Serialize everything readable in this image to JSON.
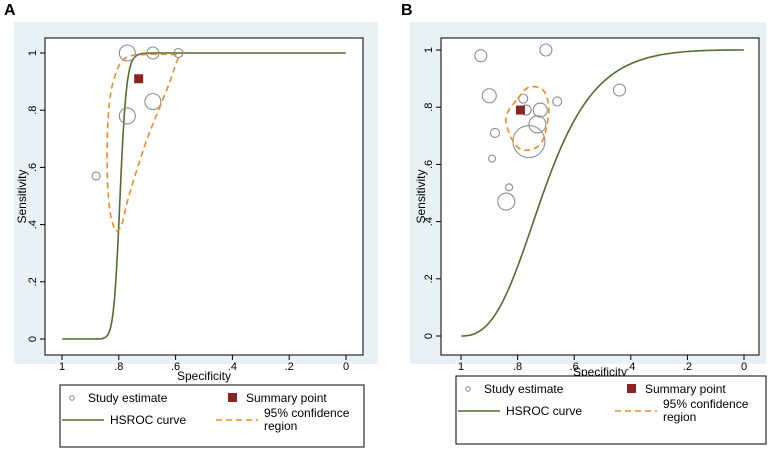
{
  "panels": [
    {
      "letter": "A"
    },
    {
      "letter": "B"
    }
  ],
  "legend": {
    "study_estimate": "Study estimate",
    "summary_point": "Summary point",
    "hsroc_curve": "HSROC curve",
    "confidence_region_line1": "95% confidence",
    "confidence_region_line2": "region"
  },
  "colors": {
    "panel_bg": "#e8f1f4",
    "plot_bg": "#ffffff",
    "hsroc": "#556b2f",
    "confidence": "#f08a24",
    "summary": "#8b2323",
    "study_edge": "#8c8c8c"
  },
  "chart_data": [
    {
      "type": "scatter",
      "panel": "A",
      "xlabel": "Specificity",
      "ylabel": "Sensitivity",
      "x_reversed": true,
      "xlim": [
        1,
        0
      ],
      "ylim": [
        0,
        1
      ],
      "x_ticks": [
        "1",
        ".8",
        ".6",
        ".4",
        ".2",
        "0"
      ],
      "y_ticks": [
        "0",
        ".2",
        ".4",
        ".6",
        ".8",
        "1"
      ],
      "grid": false,
      "legend_position": "bottom",
      "study_estimates": [
        {
          "specificity": 0.88,
          "sensitivity": 0.57,
          "size": 0.4
        },
        {
          "specificity": 0.77,
          "sensitivity": 1.0,
          "size": 0.8
        },
        {
          "specificity": 0.68,
          "sensitivity": 1.0,
          "size": 0.6
        },
        {
          "specificity": 0.59,
          "sensitivity": 1.0,
          "size": 0.45
        },
        {
          "specificity": 0.77,
          "sensitivity": 0.78,
          "size": 0.8
        },
        {
          "specificity": 0.68,
          "sensitivity": 0.83,
          "size": 0.8
        }
      ],
      "summary_point": {
        "specificity": 0.73,
        "sensitivity": 0.91
      },
      "hsroc_curve": {
        "alpha": 19.7,
        "beta": -14.5,
        "xfrom": 1.0,
        "xto": 0.0
      },
      "confidence_region": [
        [
          0.81,
          0.38
        ],
        [
          0.79,
          0.4
        ],
        [
          0.77,
          0.48
        ],
        [
          0.74,
          0.58
        ],
        [
          0.7,
          0.7
        ],
        [
          0.66,
          0.8
        ],
        [
          0.62,
          0.9
        ],
        [
          0.6,
          0.96
        ],
        [
          0.59,
          0.99
        ],
        [
          0.62,
          0.995
        ],
        [
          0.7,
          0.995
        ],
        [
          0.76,
          0.99
        ],
        [
          0.79,
          0.97
        ],
        [
          0.81,
          0.93
        ],
        [
          0.83,
          0.85
        ],
        [
          0.84,
          0.72
        ],
        [
          0.84,
          0.56
        ],
        [
          0.83,
          0.44
        ]
      ]
    },
    {
      "type": "scatter",
      "panel": "B",
      "xlabel": "Specificity",
      "ylabel": "Sensitivity",
      "x_reversed": true,
      "xlim": [
        1,
        0
      ],
      "ylim": [
        0,
        1
      ],
      "x_ticks": [
        "1",
        ".8",
        ".6",
        ".4",
        ".2",
        "0"
      ],
      "y_ticks": [
        "0",
        ".2",
        ".4",
        ".6",
        ".8",
        "1"
      ],
      "grid": false,
      "legend_position": "bottom",
      "study_estimates": [
        {
          "specificity": 0.93,
          "sensitivity": 0.98,
          "size": 0.6
        },
        {
          "specificity": 0.7,
          "sensitivity": 1.0,
          "size": 0.6
        },
        {
          "specificity": 0.9,
          "sensitivity": 0.84,
          "size": 0.7
        },
        {
          "specificity": 0.88,
          "sensitivity": 0.71,
          "size": 0.45
        },
        {
          "specificity": 0.89,
          "sensitivity": 0.62,
          "size": 0.35
        },
        {
          "specificity": 0.78,
          "sensitivity": 0.83,
          "size": 0.45
        },
        {
          "specificity": 0.77,
          "sensitivity": 0.79,
          "size": 0.5
        },
        {
          "specificity": 0.72,
          "sensitivity": 0.79,
          "size": 0.7
        },
        {
          "specificity": 0.73,
          "sensitivity": 0.74,
          "size": 0.85
        },
        {
          "specificity": 0.76,
          "sensitivity": 0.68,
          "size": 1.6
        },
        {
          "specificity": 0.66,
          "sensitivity": 0.82,
          "size": 0.45
        },
        {
          "specificity": 0.44,
          "sensitivity": 0.86,
          "size": 0.6
        },
        {
          "specificity": 0.83,
          "sensitivity": 0.52,
          "size": 0.35
        },
        {
          "specificity": 0.84,
          "sensitivity": 0.47,
          "size": 0.85
        }
      ],
      "summary_point": {
        "specificity": 0.79,
        "sensitivity": 0.79
      },
      "hsroc_curve": {
        "alpha": 2.05,
        "beta": -2.3,
        "xfrom": 1.0,
        "xto": 0.0
      },
      "confidence_region": [
        [
          0.8,
          0.83
        ],
        [
          0.76,
          0.87
        ],
        [
          0.71,
          0.86
        ],
        [
          0.69,
          0.8
        ],
        [
          0.7,
          0.72
        ],
        [
          0.72,
          0.67
        ],
        [
          0.76,
          0.65
        ],
        [
          0.8,
          0.66
        ],
        [
          0.83,
          0.71
        ],
        [
          0.84,
          0.77
        ]
      ]
    }
  ]
}
